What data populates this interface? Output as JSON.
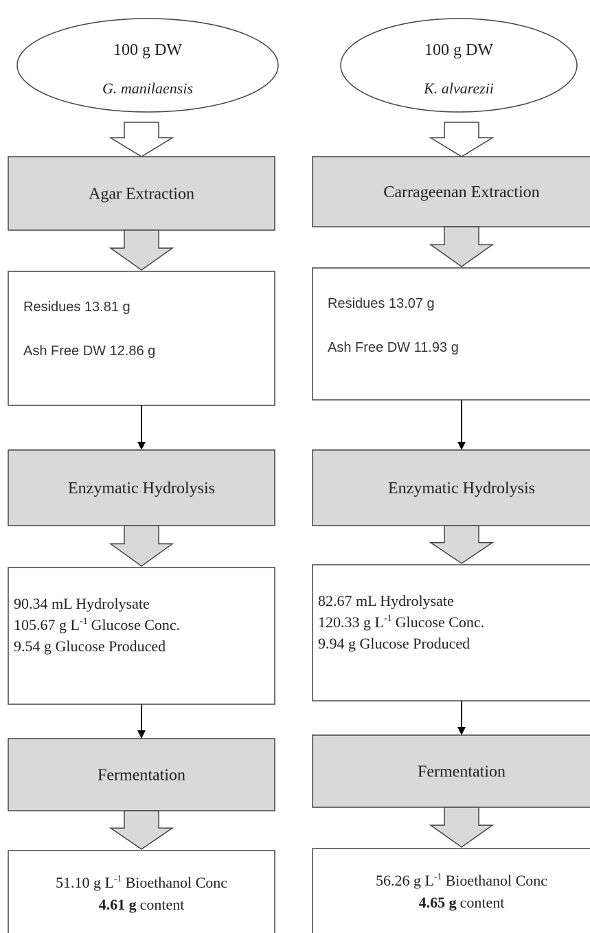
{
  "columns": [
    {
      "source": {
        "amount": "100 g DW",
        "species": "G. manilaensis"
      },
      "extraction": "Agar Extraction",
      "residues": [
        "Residues 13.81 g",
        "Ash Free DW 12.86 g"
      ],
      "hydrolysis": "Enzymatic Hydrolysis",
      "hydrolysate": {
        "volume": "90.34 mL Hydrolysate",
        "conc": {
          "value": "105.67 g L",
          "superscript": "-1",
          "unit": "Glucose Conc."
        },
        "produced": "9.54 g Glucose Produced"
      },
      "fermentation": "Fermentation",
      "bioethanol": {
        "conc": {
          "value": "51.10 g L",
          "superscript": "-1",
          "unit": "Bioethanol Conc"
        },
        "content": {
          "amount": "4.61 g",
          "label": "content"
        }
      }
    },
    {
      "source": {
        "amount": "100 g DW",
        "species": "K. alvarezii"
      },
      "extraction": "Carrageenan Extraction",
      "residues": [
        "Residues 13.07 g",
        "Ash Free DW 11.93 g"
      ],
      "hydrolysis": "Enzymatic Hydrolysis",
      "hydrolysate": {
        "volume": "82.67 mL Hydrolysate",
        "conc": {
          "value": "120.33 g L",
          "superscript": "-1",
          "unit": "Glucose Conc."
        },
        "produced": "9.94 g Glucose Produced"
      },
      "fermentation": "Fermentation",
      "bioethanol": {
        "conc": {
          "value": "56.26 g L",
          "superscript": "-1",
          "unit": "Bioethanol Conc"
        },
        "content": {
          "amount": "4.65 g",
          "label": "content"
        }
      }
    }
  ]
}
